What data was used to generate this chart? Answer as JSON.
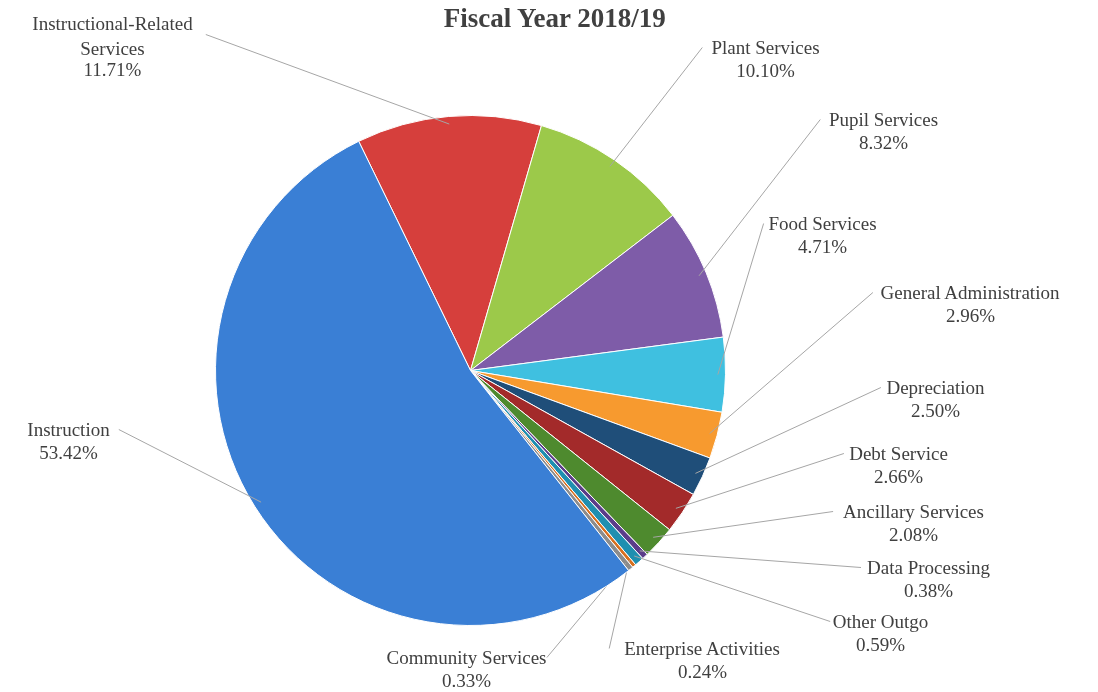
{
  "chart_data": {
    "type": "pie",
    "title": "Fiscal Year 2018/19",
    "categories": [
      "Instructional-Related Services",
      "Plant Services",
      "Pupil Services",
      "Food Services",
      "General Administration",
      "Depreciation",
      "Debt Service",
      "Ancillary Services",
      "Data Processing",
      "Other Outgo",
      "Enterprise Activities",
      "Community Services",
      "Instruction"
    ],
    "values": [
      11.71,
      10.1,
      8.32,
      4.71,
      2.96,
      2.5,
      2.66,
      2.08,
      0.38,
      0.59,
      0.24,
      0.33,
      53.42
    ],
    "colors": [
      "#d63f3c",
      "#9cc94a",
      "#7e5ca8",
      "#3fc0e0",
      "#f79a2f",
      "#1f4e79",
      "#a32a2a",
      "#4e8a2e",
      "#5b3d8a",
      "#1f8fb0",
      "#d9701f",
      "#8c8c8c",
      "#3a7fd5"
    ],
    "value_labels": [
      "11.71%",
      "10.10%",
      "8.32%",
      "4.71%",
      "2.96%",
      "2.50%",
      "2.66%",
      "2.08%",
      "0.38%",
      "0.59%",
      "0.24%",
      "0.33%",
      "53.42%"
    ]
  }
}
